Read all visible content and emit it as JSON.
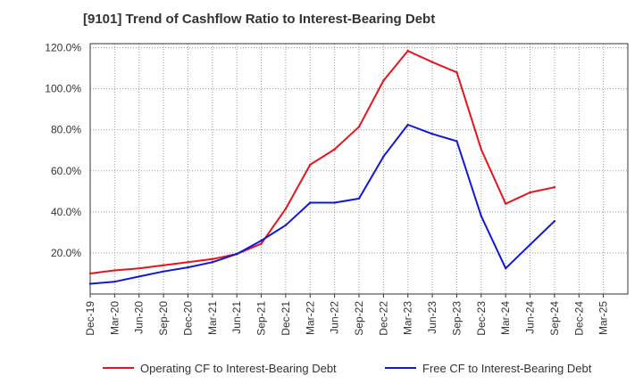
{
  "chart_data": {
    "type": "line",
    "title": "[9101]  Trend of Cashflow Ratio to Interest-Bearing Debt",
    "xlabel": "",
    "ylabel": "",
    "categories": [
      "Dec-19",
      "Mar-20",
      "Jun-20",
      "Sep-20",
      "Dec-20",
      "Mar-21",
      "Jun-21",
      "Sep-21",
      "Dec-21",
      "Mar-22",
      "Jun-22",
      "Sep-22",
      "Dec-22",
      "Mar-23",
      "Jun-23",
      "Sep-23",
      "Dec-23",
      "Mar-24",
      "Jun-24",
      "Sep-24",
      "Dec-24",
      "Mar-25"
    ],
    "ylim": [
      0.0,
      122.0
    ],
    "yticks": [
      20.0,
      40.0,
      60.0,
      80.0,
      100.0,
      120.0
    ],
    "ytick_labels": [
      "20.0%",
      "40.0%",
      "60.0%",
      "80.0%",
      "100.0%",
      "120.0%"
    ],
    "grid": true,
    "legend_position": "bottom",
    "series": [
      {
        "name": "Operating CF to Interest-Bearing Debt",
        "color": "#e8141c",
        "values": [
          10.0,
          11.5,
          12.5,
          14.0,
          15.5,
          17.0,
          19.5,
          24.5,
          41.5,
          63.0,
          70.5,
          81.5,
          104.0,
          118.5,
          113.0,
          108.0,
          70.5,
          44.0,
          49.5,
          52.0,
          null,
          null
        ]
      },
      {
        "name": "Free CF to Interest-Bearing Debt",
        "color": "#1018d8",
        "values": [
          5.0,
          6.0,
          8.5,
          11.0,
          13.0,
          15.5,
          19.5,
          26.0,
          33.5,
          44.5,
          44.5,
          46.5,
          67.0,
          82.5,
          78.0,
          74.5,
          38.0,
          12.5,
          24.0,
          35.5,
          null,
          null
        ]
      }
    ]
  }
}
